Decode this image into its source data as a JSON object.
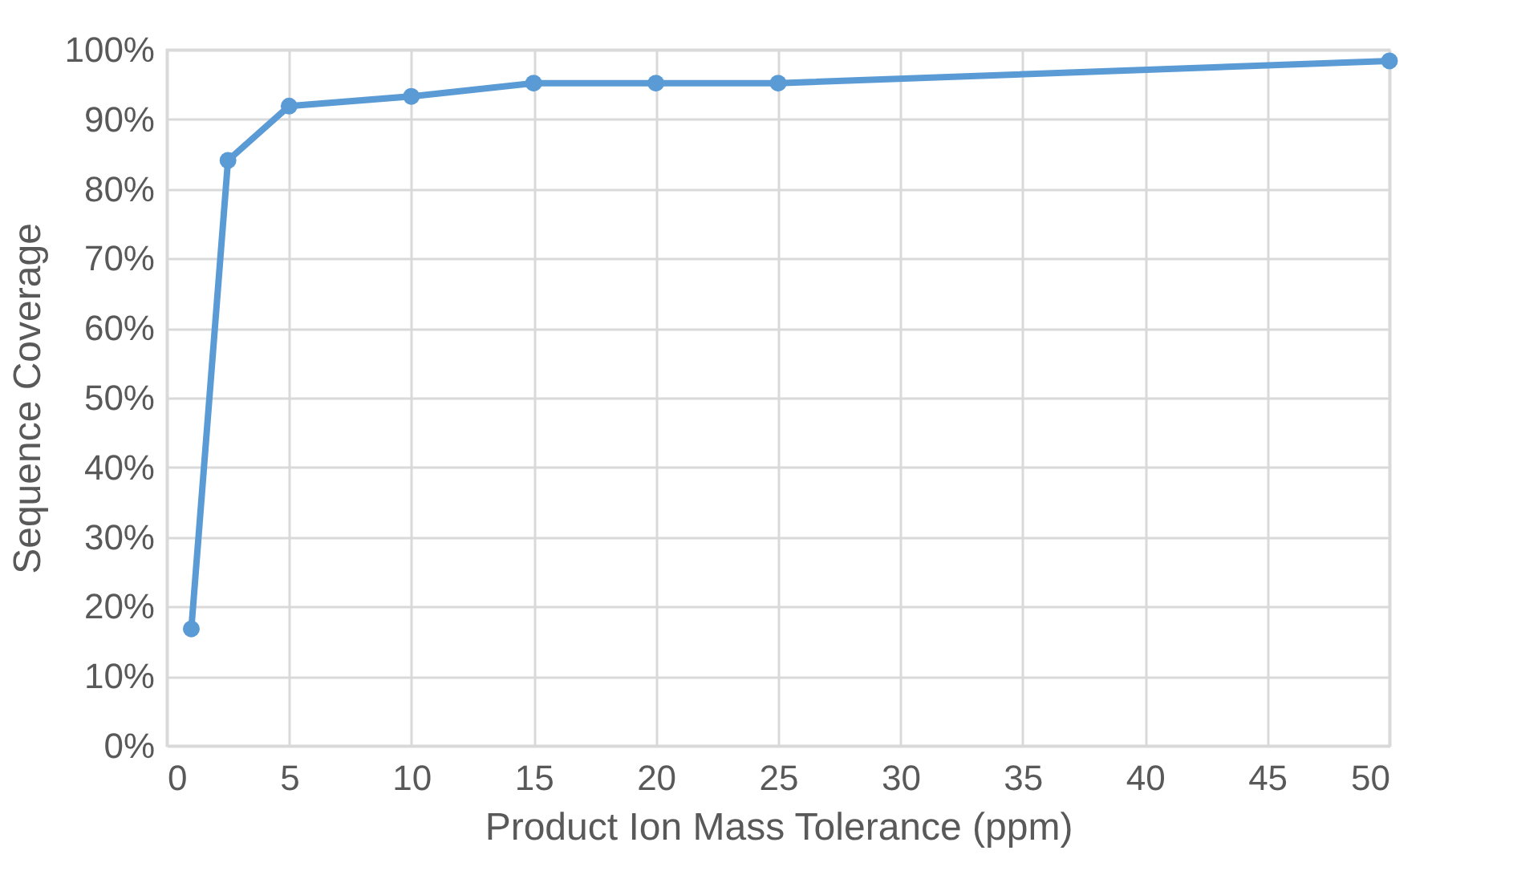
{
  "chart_data": {
    "type": "line",
    "xlabel": "Product Ion Mass Tolerance (ppm)",
    "ylabel": "Sequence Coverage",
    "x": [
      1,
      2.5,
      5,
      10,
      15,
      20,
      25,
      50
    ],
    "series": [
      {
        "color": "#5b9bd5",
        "values": [
          16.8,
          84.1,
          91.9,
          93.3,
          95.2,
          95.2,
          95.2,
          98.4
        ]
      }
    ],
    "xlim": [
      0,
      50
    ],
    "xticks": [
      0,
      5,
      10,
      15,
      20,
      25,
      30,
      35,
      40,
      45,
      50
    ],
    "ylim": [
      0,
      100
    ],
    "yticks": [
      {
        "value": 0,
        "label": "0%"
      },
      {
        "value": 10,
        "label": "10%"
      },
      {
        "value": 20,
        "label": "20%"
      },
      {
        "value": 30,
        "label": "30%"
      },
      {
        "value": 40,
        "label": "40%"
      },
      {
        "value": 50,
        "label": "50%"
      },
      {
        "value": 60,
        "label": "60%"
      },
      {
        "value": 70,
        "label": "70%"
      },
      {
        "value": 80,
        "label": "80%"
      },
      {
        "value": 90,
        "label": "90%"
      },
      {
        "value": 100,
        "label": "100%"
      }
    ],
    "grid": true,
    "marker": "circle",
    "line_style": "solid"
  }
}
